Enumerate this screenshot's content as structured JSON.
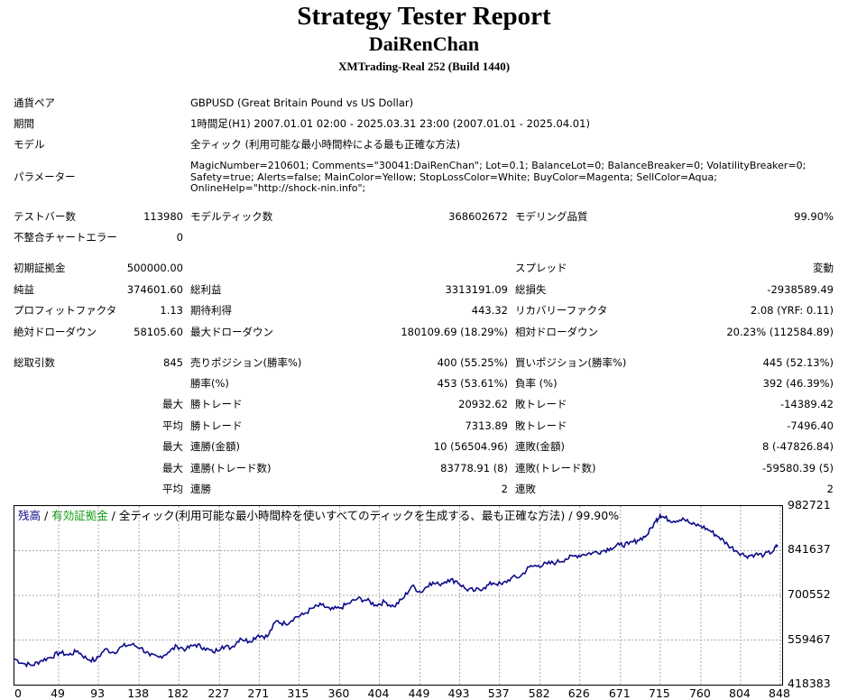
{
  "header": {
    "title": "Strategy Tester Report",
    "name": "DaiRenChan",
    "server": "XMTrading-Real 252 (Build 1440)"
  },
  "info": {
    "symbol_label": "通貨ペア",
    "symbol_value": "GBPUSD (Great Britain Pound vs US Dollar)",
    "period_label": "期間",
    "period_value": "1時間足(H1) 2007.01.01 02:00 - 2025.03.31 23:00 (2007.01.01 - 2025.04.01)",
    "model_label": "モデル",
    "model_value": "全ティック (利用可能な最小時間枠による最も正確な方法)",
    "params_label": "パラメーター",
    "params_value": "MagicNumber=210601; Comments=\"30041:DaiRenChan\"; Lot=0.1; BalanceLot=0; BalanceBreaker=0; VolatilityBreaker=0; Safety=true; Alerts=false; MainColor=Yellow; StopLossColor=White; BuyColor=Magenta; SellColor=Aqua; OnlineHelp=\"http://shock-nin.info\";"
  },
  "bars": {
    "bars_label": "テストバー数",
    "bars_value": "113980",
    "ticks_label": "モデルティック数",
    "ticks_value": "368602672",
    "quality_label": "モデリング品質",
    "quality_value": "99.90%",
    "errors_label": "不整合チャートエラー",
    "errors_value": "0"
  },
  "stats": {
    "deposit_label": "初期証拠金",
    "deposit_value": "500000.00",
    "spread_label": "スプレッド",
    "spread_value": "変動",
    "net_label": "純益",
    "net_value": "374601.60",
    "gross_profit_label": "総利益",
    "gross_profit_value": "3313191.09",
    "gross_loss_label": "総損失",
    "gross_loss_value": "-2938589.49",
    "pf_label": "プロフィットファクタ",
    "pf_value": "1.13",
    "payoff_label": "期待利得",
    "payoff_value": "443.32",
    "recovery_label": "リカバリーファクタ",
    "recovery_value": "2.08 (YRF: 0.11)",
    "abs_dd_label": "絶対ドローダウン",
    "abs_dd_value": "58105.60",
    "max_dd_label": "最大ドローダウン",
    "max_dd_value": "180109.69 (18.29%)",
    "rel_dd_label": "相対ドローダウン",
    "rel_dd_value": "20.23% (112584.89)",
    "total_label": "総取引数",
    "total_value": "845",
    "short_label": "売りポジション(勝率%)",
    "short_value": "400 (55.25%)",
    "long_label": "買いポジション(勝率%)",
    "long_value": "445 (52.13%)",
    "winrate_label": "勝率(%)",
    "winrate_value": "453 (53.61%)",
    "lossrate_label": "負率 (%)",
    "lossrate_value": "392 (46.39%)",
    "max_label": "最大",
    "avg_label": "平均",
    "largest_win_label": "勝トレード",
    "largest_win_value": "20932.62",
    "largest_loss_label": "敗トレード",
    "largest_loss_value": "-14389.42",
    "avg_win_label": "勝トレード",
    "avg_win_value": "7313.89",
    "avg_loss_label": "敗トレード",
    "avg_loss_value": "-7496.40",
    "max_cons_win_label": "連勝(金額)",
    "max_cons_win_value": "10 (56504.96)",
    "max_cons_loss_label": "連敗(金額)",
    "max_cons_loss_value": "8 (-47826.84)",
    "max_cons_profit_label": "連勝(トレード数)",
    "max_cons_profit_value": "83778.91 (8)",
    "max_cons_lossamt_label": "連敗(トレード数)",
    "max_cons_lossamt_value": "-59580.39 (5)",
    "avg_cons_win_label": "連勝",
    "avg_cons_win_value": "2",
    "avg_cons_loss_label": "連敗",
    "avg_cons_loss_value": "2"
  },
  "chart_legend": {
    "balance": "残高",
    "sep1": " / ",
    "equity": "有効証拠金",
    "sep2": " / ",
    "rest": "全ティック(利用可能な最小時間枠を使いすべてのティックを生成する、最も正確な方法) / 99.90%"
  },
  "colors": {
    "balance_line": "#0c0c8a",
    "equity_legend": "#139a13",
    "balance_legend": "#0c0c8a",
    "grid": "#a8a8a8"
  },
  "chart_data": {
    "type": "line",
    "title": "",
    "xlabel": "",
    "ylabel": "",
    "x_ticks": [
      "0",
      "49",
      "93",
      "138",
      "182",
      "227",
      "271",
      "315",
      "360",
      "404",
      "449",
      "493",
      "537",
      "582",
      "626",
      "671",
      "715",
      "760",
      "804",
      "848"
    ],
    "y_ticks": [
      "982721",
      "841637",
      "700552",
      "559467",
      "418383"
    ],
    "xlim": [
      0,
      850
    ],
    "ylim": [
      418383,
      982721
    ],
    "grid": true,
    "series": [
      {
        "values_x": [
          0,
          10,
          20,
          30,
          40,
          50,
          60,
          70,
          80,
          90,
          100,
          110,
          120,
          130,
          140,
          150,
          160,
          170,
          180,
          190,
          200,
          210,
          220,
          230,
          240,
          250,
          260,
          270,
          280,
          290,
          300,
          310,
          320,
          330,
          340,
          350,
          360,
          370,
          380,
          390,
          400,
          410,
          420,
          430,
          440,
          450,
          460,
          470,
          480,
          490,
          500,
          510,
          520,
          530,
          540,
          550,
          560,
          570,
          580,
          590,
          600,
          610,
          620,
          630,
          640,
          650,
          660,
          670,
          680,
          690,
          700,
          710,
          715,
          720,
          730,
          740,
          750,
          760,
          770,
          780,
          790,
          800,
          810,
          820,
          830,
          840,
          845
        ],
        "values_y": [
          500000,
          485000,
          480000,
          495000,
          505000,
          520000,
          512000,
          525000,
          500000,
          495000,
          530000,
          520000,
          540000,
          545000,
          535000,
          510000,
          505000,
          520000,
          540000,
          530000,
          545000,
          535000,
          520000,
          540000,
          535000,
          565000,
          555000,
          575000,
          570000,
          620000,
          610000,
          630000,
          640000,
          660000,
          670000,
          655000,
          660000,
          675000,
          690000,
          685000,
          670000,
          680000,
          665000,
          690000,
          730000,
          710000,
          740000,
          735000,
          750000,
          745000,
          720000,
          715000,
          725000,
          740000,
          735000,
          755000,
          760000,
          790000,
          795000,
          800000,
          805000,
          815000,
          825000,
          830000,
          835000,
          840000,
          850000,
          860000,
          862000,
          875000,
          890000,
          935000,
          955000,
          945000,
          935000,
          945000,
          925000,
          920000,
          905000,
          885000,
          860000,
          840000,
          825000,
          830000,
          828000,
          840000,
          860000
        ]
      }
    ]
  }
}
